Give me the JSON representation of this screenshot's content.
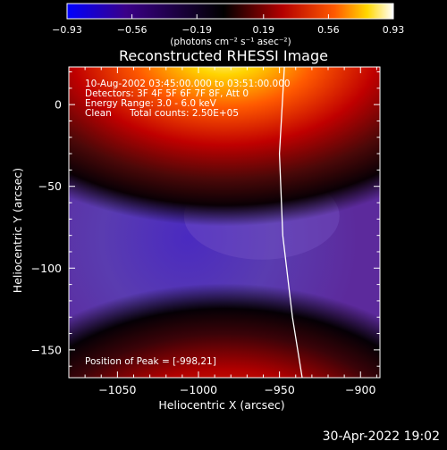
{
  "chart_data": {
    "type": "heatmap",
    "title": "Reconstructed RHESSI Image",
    "xlabel": "Heliocentric X (arcsec)",
    "ylabel": "Heliocentric Y (arcsec)",
    "xlim": [
      -1080,
      -888
    ],
    "ylim": [
      -167,
      23
    ],
    "x_ticks": [
      {
        "value": -1050,
        "label": "−1050"
      },
      {
        "value": -1000,
        "label": "−1000"
      },
      {
        "value": -950,
        "label": "−950"
      },
      {
        "value": -900,
        "label": "−900"
      }
    ],
    "y_ticks": [
      {
        "value": 0,
        "label": "0"
      },
      {
        "value": -50,
        "label": "−50"
      },
      {
        "value": -100,
        "label": "−100"
      },
      {
        "value": -150,
        "label": "−150"
      }
    ],
    "colorbar": {
      "range": [
        -0.93,
        0.93
      ],
      "ticks": [
        {
          "value": -0.93,
          "label": "−0.93"
        },
        {
          "value": -0.56,
          "label": "−0.56"
        },
        {
          "value": -0.19,
          "label": "−0.19"
        },
        {
          "value": 0.19,
          "label": "0.19"
        },
        {
          "value": 0.56,
          "label": "0.56"
        },
        {
          "value": 0.93,
          "label": "0.93"
        }
      ],
      "unit_label": "(photons cm⁻² s⁻¹ asec⁻²)",
      "colormap": [
        "#0000ff",
        "#3a0088",
        "#000000",
        "#b40000",
        "#ff5a00",
        "#ffffff"
      ]
    },
    "annotations": {
      "time_range": "10-Aug-2002 03:45:00.000 to 03:51:00.000",
      "detectors": "Detectors: 3F 4F 5F 6F 7F 8F, Att 0",
      "energy_range": "Energy Range: 3.0 - 6.0 keV",
      "method": "Clean",
      "total_counts": "Total counts: 2.50E+05",
      "peak": "Position of Peak = [-998,21]"
    },
    "peak_position": [
      -998,
      21
    ],
    "limb_curve": [
      [
        -947,
        23
      ],
      [
        -950,
        -30
      ],
      [
        -948,
        -80
      ],
      [
        -942,
        -130
      ],
      [
        -936,
        -167
      ]
    ]
  },
  "timestamp": "30-Apr-2022 19:02"
}
